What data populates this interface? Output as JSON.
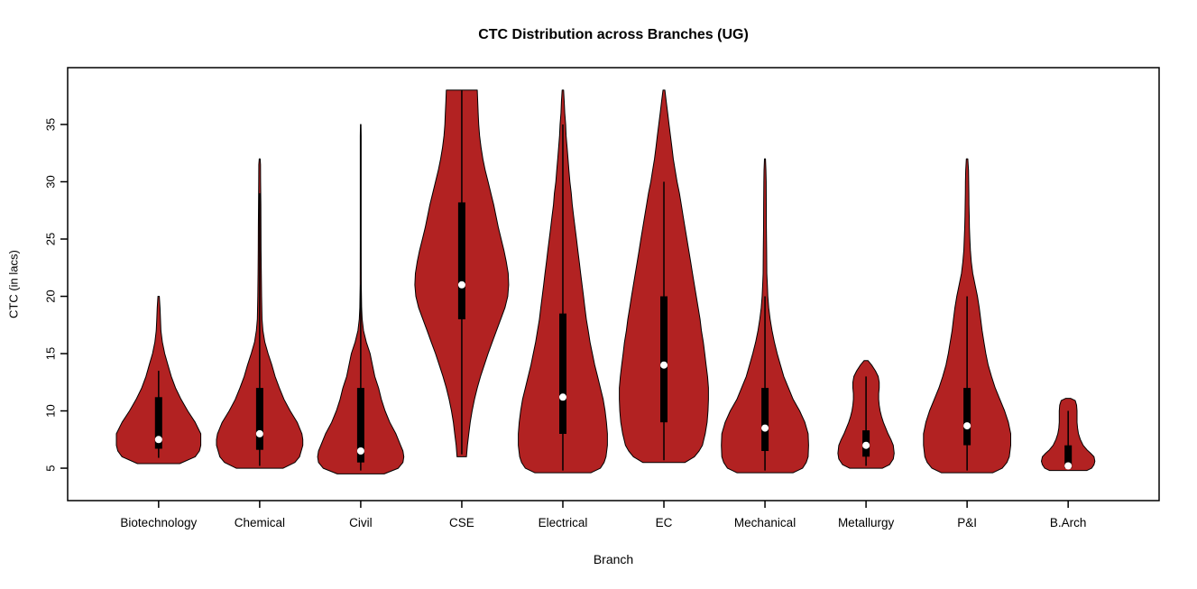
{
  "chart_data": {
    "type": "violin",
    "title": "CTC Distribution across Branches (UG)",
    "xlabel": "Branch",
    "ylabel": "CTC (in lacs)",
    "yticks": [
      5,
      10,
      15,
      20,
      25,
      30,
      35
    ],
    "ylim": [
      2.17,
      39.96
    ],
    "grid": false,
    "legend": "none",
    "colors": {
      "violin_fill": "#B22222",
      "violin_stroke": "#000000",
      "box": "#000000",
      "whisker": "#000000",
      "median_dot": "#FFFFFF",
      "axis": "#000000"
    },
    "categories": [
      "Biotechnology",
      "Chemical",
      "Civil",
      "CSE",
      "Electrical",
      "EC",
      "Mechanical",
      "Metallurgy",
      "P&I",
      "B.Arch"
    ],
    "violins": [
      {
        "label": "Biotechnology",
        "stats": {
          "min": 5.4,
          "max": 20,
          "median": 7.5,
          "q1": 6.7,
          "q3": 11.2,
          "whisker_low": 5.9,
          "whisker_high": 13.5
        },
        "profile": [
          [
            5.4,
            0.45
          ],
          [
            6,
            0.78
          ],
          [
            6.5,
            0.87
          ],
          [
            7,
            0.9
          ],
          [
            8,
            0.9
          ],
          [
            9,
            0.78
          ],
          [
            10,
            0.62
          ],
          [
            11,
            0.48
          ],
          [
            12,
            0.36
          ],
          [
            13,
            0.27
          ],
          [
            14,
            0.2
          ],
          [
            15,
            0.13
          ],
          [
            16,
            0.08
          ],
          [
            17,
            0.05
          ],
          [
            18,
            0.04
          ],
          [
            19,
            0.03
          ],
          [
            20,
            0.015
          ]
        ]
      },
      {
        "label": "Chemical",
        "stats": {
          "min": 5.0,
          "max": 32,
          "median": 8.0,
          "q1": 6.6,
          "q3": 12.0,
          "whisker_low": 5.2,
          "whisker_high": 29
        },
        "profile": [
          [
            5.0,
            0.5
          ],
          [
            5.5,
            0.75
          ],
          [
            6,
            0.85
          ],
          [
            7,
            0.92
          ],
          [
            7.5,
            0.92
          ],
          [
            8,
            0.9
          ],
          [
            9,
            0.8
          ],
          [
            10,
            0.65
          ],
          [
            11,
            0.52
          ],
          [
            12,
            0.42
          ],
          [
            13,
            0.33
          ],
          [
            14,
            0.26
          ],
          [
            15,
            0.18
          ],
          [
            16,
            0.11
          ],
          [
            17,
            0.07
          ],
          [
            18,
            0.05
          ],
          [
            20,
            0.04
          ],
          [
            22,
            0.035
          ],
          [
            24,
            0.03
          ],
          [
            26,
            0.028
          ],
          [
            28,
            0.025
          ],
          [
            30,
            0.02
          ],
          [
            31.5,
            0.018
          ],
          [
            32,
            0.01
          ]
        ]
      },
      {
        "label": "Civil",
        "stats": {
          "min": 4.5,
          "max": 35,
          "median": 6.5,
          "q1": 5.5,
          "q3": 12.0,
          "whisker_low": 4.8,
          "whisker_high": 21
        },
        "profile": [
          [
            4.5,
            0.5
          ],
          [
            5,
            0.8
          ],
          [
            5.5,
            0.9
          ],
          [
            6,
            0.92
          ],
          [
            6.5,
            0.9
          ],
          [
            7,
            0.85
          ],
          [
            8,
            0.75
          ],
          [
            9,
            0.62
          ],
          [
            10,
            0.52
          ],
          [
            11,
            0.44
          ],
          [
            12,
            0.38
          ],
          [
            13,
            0.3
          ],
          [
            14,
            0.25
          ],
          [
            15,
            0.2
          ],
          [
            16,
            0.12
          ],
          [
            17,
            0.06
          ],
          [
            18,
            0.03
          ],
          [
            19,
            0.02
          ],
          [
            21,
            0.012
          ],
          [
            25,
            0.01
          ],
          [
            30,
            0.01
          ],
          [
            34,
            0.01
          ],
          [
            35,
            0.005
          ]
        ]
      },
      {
        "label": "CSE",
        "stats": {
          "min": 6.0,
          "max": 38,
          "median": 21.0,
          "q1": 18.0,
          "q3": 28.2,
          "whisker_low": 6.2,
          "whisker_high": 38
        },
        "profile": [
          [
            6,
            0.1
          ],
          [
            7,
            0.12
          ],
          [
            8,
            0.15
          ],
          [
            9,
            0.18
          ],
          [
            10,
            0.22
          ],
          [
            11,
            0.27
          ],
          [
            12,
            0.33
          ],
          [
            13,
            0.4
          ],
          [
            14,
            0.48
          ],
          [
            15,
            0.56
          ],
          [
            16,
            0.65
          ],
          [
            17,
            0.74
          ],
          [
            18,
            0.83
          ],
          [
            19,
            0.92
          ],
          [
            20,
            0.98
          ],
          [
            21,
            1.0
          ],
          [
            22,
            0.99
          ],
          [
            23,
            0.95
          ],
          [
            24,
            0.9
          ],
          [
            25,
            0.84
          ],
          [
            26,
            0.78
          ],
          [
            27,
            0.73
          ],
          [
            28,
            0.68
          ],
          [
            29,
            0.62
          ],
          [
            30,
            0.56
          ],
          [
            31,
            0.5
          ],
          [
            32,
            0.45
          ],
          [
            33,
            0.41
          ],
          [
            34,
            0.38
          ],
          [
            35,
            0.36
          ],
          [
            36,
            0.35
          ],
          [
            37,
            0.34
          ],
          [
            38,
            0.33
          ]
        ]
      },
      {
        "label": "Electrical",
        "stats": {
          "min": 4.6,
          "max": 38,
          "median": 11.2,
          "q1": 8.0,
          "q3": 18.5,
          "whisker_low": 4.8,
          "whisker_high": 35
        },
        "profile": [
          [
            4.6,
            0.6
          ],
          [
            5,
            0.8
          ],
          [
            5.5,
            0.88
          ],
          [
            6,
            0.92
          ],
          [
            7,
            0.95
          ],
          [
            8,
            0.95
          ],
          [
            9,
            0.93
          ],
          [
            10,
            0.9
          ],
          [
            11,
            0.86
          ],
          [
            12,
            0.8
          ],
          [
            13,
            0.74
          ],
          [
            14,
            0.68
          ],
          [
            15,
            0.63
          ],
          [
            16,
            0.58
          ],
          [
            17,
            0.54
          ],
          [
            18,
            0.5
          ],
          [
            19,
            0.47
          ],
          [
            20,
            0.44
          ],
          [
            21,
            0.41
          ],
          [
            22,
            0.38
          ],
          [
            23,
            0.35
          ],
          [
            24,
            0.32
          ],
          [
            25,
            0.29
          ],
          [
            26,
            0.26
          ],
          [
            27,
            0.23
          ],
          [
            28,
            0.2
          ],
          [
            29,
            0.18
          ],
          [
            30,
            0.15
          ],
          [
            31,
            0.13
          ],
          [
            32,
            0.11
          ],
          [
            33,
            0.09
          ],
          [
            34,
            0.07
          ],
          [
            35,
            0.06
          ],
          [
            36,
            0.04
          ],
          [
            37,
            0.03
          ],
          [
            38,
            0.015
          ]
        ]
      },
      {
        "label": "EC",
        "stats": {
          "min": 5.5,
          "max": 38,
          "median": 14.0,
          "q1": 9.0,
          "q3": 20.0,
          "whisker_low": 5.7,
          "whisker_high": 30
        },
        "profile": [
          [
            5.5,
            0.45
          ],
          [
            6,
            0.65
          ],
          [
            6.5,
            0.75
          ],
          [
            7,
            0.82
          ],
          [
            8,
            0.88
          ],
          [
            9,
            0.92
          ],
          [
            10,
            0.94
          ],
          [
            11,
            0.95
          ],
          [
            12,
            0.95
          ],
          [
            13,
            0.93
          ],
          [
            14,
            0.9
          ],
          [
            15,
            0.87
          ],
          [
            16,
            0.84
          ],
          [
            17,
            0.8
          ],
          [
            18,
            0.77
          ],
          [
            19,
            0.73
          ],
          [
            20,
            0.69
          ],
          [
            21,
            0.65
          ],
          [
            22,
            0.61
          ],
          [
            23,
            0.57
          ],
          [
            24,
            0.53
          ],
          [
            25,
            0.49
          ],
          [
            26,
            0.45
          ],
          [
            27,
            0.41
          ],
          [
            28,
            0.37
          ],
          [
            29,
            0.33
          ],
          [
            30,
            0.28
          ],
          [
            31,
            0.24
          ],
          [
            32,
            0.2
          ],
          [
            33,
            0.17
          ],
          [
            34,
            0.14
          ],
          [
            35,
            0.11
          ],
          [
            36,
            0.08
          ],
          [
            37,
            0.05
          ],
          [
            38,
            0.02
          ]
        ]
      },
      {
        "label": "Mechanical",
        "stats": {
          "min": 4.6,
          "max": 32,
          "median": 8.5,
          "q1": 6.5,
          "q3": 12.0,
          "whisker_low": 4.8,
          "whisker_high": 20
        },
        "profile": [
          [
            4.6,
            0.6
          ],
          [
            5,
            0.8
          ],
          [
            5.5,
            0.88
          ],
          [
            6,
            0.92
          ],
          [
            7,
            0.93
          ],
          [
            8,
            0.92
          ],
          [
            9,
            0.85
          ],
          [
            10,
            0.74
          ],
          [
            11,
            0.6
          ],
          [
            12,
            0.5
          ],
          [
            13,
            0.4
          ],
          [
            14,
            0.33
          ],
          [
            15,
            0.26
          ],
          [
            16,
            0.2
          ],
          [
            17,
            0.15
          ],
          [
            18,
            0.11
          ],
          [
            19,
            0.08
          ],
          [
            20,
            0.06
          ],
          [
            21,
            0.05
          ],
          [
            22,
            0.04
          ],
          [
            24,
            0.035
          ],
          [
            26,
            0.03
          ],
          [
            28,
            0.028
          ],
          [
            30,
            0.025
          ],
          [
            31,
            0.02
          ],
          [
            32,
            0.01
          ]
        ]
      },
      {
        "label": "Metallurgy",
        "stats": {
          "min": 5.0,
          "max": 14.4,
          "median": 7.0,
          "q1": 6.0,
          "q3": 8.3,
          "whisker_low": 5.2,
          "whisker_high": 13
        },
        "profile": [
          [
            5.0,
            0.35
          ],
          [
            5.3,
            0.5
          ],
          [
            5.8,
            0.58
          ],
          [
            6.3,
            0.6
          ],
          [
            7,
            0.58
          ],
          [
            7.5,
            0.53
          ],
          [
            8,
            0.47
          ],
          [
            8.5,
            0.42
          ],
          [
            9,
            0.37
          ],
          [
            9.5,
            0.33
          ],
          [
            10,
            0.3
          ],
          [
            10.5,
            0.28
          ],
          [
            11,
            0.27
          ],
          [
            11.5,
            0.27
          ],
          [
            12,
            0.28
          ],
          [
            12.5,
            0.28
          ],
          [
            13,
            0.26
          ],
          [
            13.5,
            0.2
          ],
          [
            14,
            0.12
          ],
          [
            14.4,
            0.04
          ]
        ]
      },
      {
        "label": "P&I",
        "stats": {
          "min": 4.6,
          "max": 32,
          "median": 8.7,
          "q1": 7.0,
          "q3": 12.0,
          "whisker_low": 4.8,
          "whisker_high": 20
        },
        "profile": [
          [
            4.6,
            0.55
          ],
          [
            5,
            0.75
          ],
          [
            5.5,
            0.85
          ],
          [
            6,
            0.9
          ],
          [
            7,
            0.93
          ],
          [
            8,
            0.93
          ],
          [
            9,
            0.88
          ],
          [
            10,
            0.8
          ],
          [
            11,
            0.7
          ],
          [
            12,
            0.6
          ],
          [
            13,
            0.52
          ],
          [
            14,
            0.45
          ],
          [
            15,
            0.4
          ],
          [
            16,
            0.36
          ],
          [
            17,
            0.32
          ],
          [
            18,
            0.29
          ],
          [
            19,
            0.26
          ],
          [
            20,
            0.22
          ],
          [
            21,
            0.17
          ],
          [
            22,
            0.12
          ],
          [
            23,
            0.09
          ],
          [
            24,
            0.07
          ],
          [
            25,
            0.06
          ],
          [
            26,
            0.05
          ],
          [
            27,
            0.045
          ],
          [
            28,
            0.04
          ],
          [
            29,
            0.038
          ],
          [
            30,
            0.035
          ],
          [
            31,
            0.03
          ],
          [
            32,
            0.015
          ]
        ]
      },
      {
        "label": "B.Arch",
        "stats": {
          "min": 4.8,
          "max": 11.1,
          "median": 5.2,
          "q1": 5.0,
          "q3": 7.0,
          "whisker_low": 4.9,
          "whisker_high": 10
        },
        "profile": [
          [
            4.8,
            0.4
          ],
          [
            5,
            0.5
          ],
          [
            5.3,
            0.55
          ],
          [
            5.6,
            0.57
          ],
          [
            6,
            0.55
          ],
          [
            6.3,
            0.48
          ],
          [
            6.6,
            0.4
          ],
          [
            7,
            0.32
          ],
          [
            7.5,
            0.26
          ],
          [
            8,
            0.22
          ],
          [
            8.5,
            0.2
          ],
          [
            9,
            0.19
          ],
          [
            9.5,
            0.19
          ],
          [
            10,
            0.19
          ],
          [
            10.5,
            0.18
          ],
          [
            10.9,
            0.15
          ],
          [
            11.1,
            0.05
          ]
        ]
      }
    ]
  }
}
